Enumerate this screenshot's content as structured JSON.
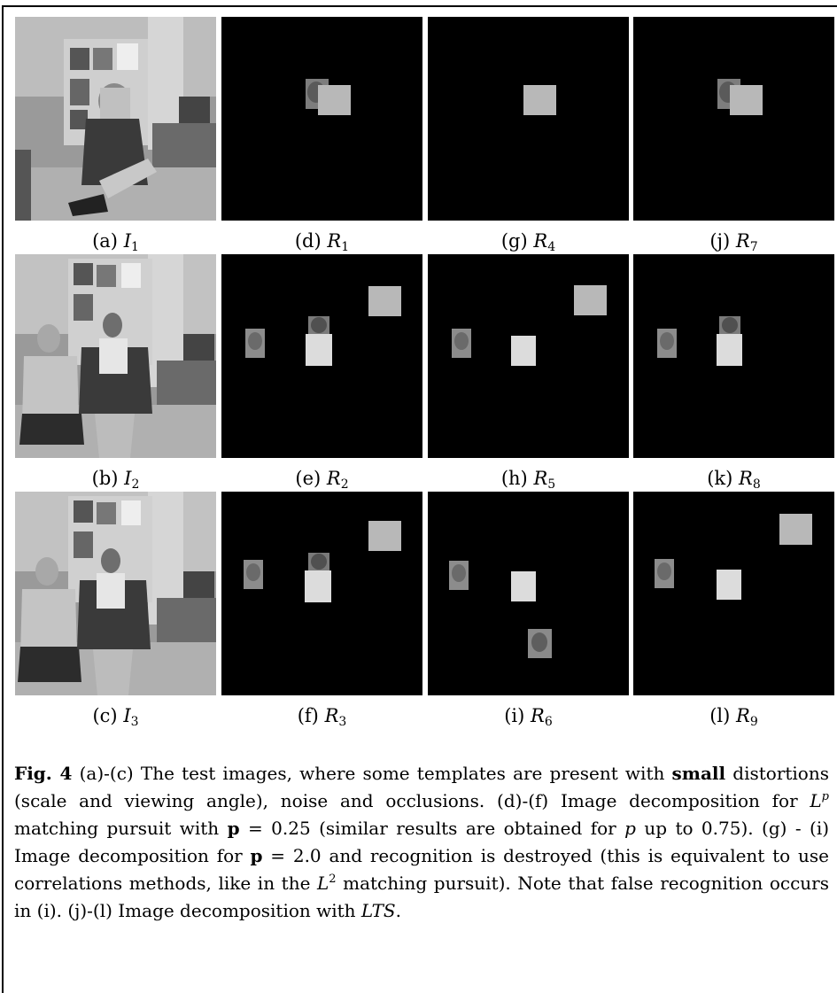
{
  "panels": [
    {
      "id": "a",
      "label": "(a)",
      "sym": "I",
      "sub": "1"
    },
    {
      "id": "d",
      "label": "(d)",
      "sym": "R",
      "sub": "1"
    },
    {
      "id": "g",
      "label": "(g)",
      "sym": "R",
      "sub": "4"
    },
    {
      "id": "j",
      "label": "(j)",
      "sym": "R",
      "sub": "7"
    },
    {
      "id": "b",
      "label": "(b)",
      "sym": "I",
      "sub": "2"
    },
    {
      "id": "e",
      "label": "(e)",
      "sym": "R",
      "sub": "2"
    },
    {
      "id": "h",
      "label": "(h)",
      "sym": "R",
      "sub": "5"
    },
    {
      "id": "k",
      "label": "(k)",
      "sym": "R",
      "sub": "8"
    },
    {
      "id": "c",
      "label": "(c)",
      "sym": "I",
      "sub": "3"
    },
    {
      "id": "f",
      "label": "(f)",
      "sym": "R",
      "sub": "3"
    },
    {
      "id": "i",
      "label": "(i)",
      "sym": "R",
      "sub": "6"
    },
    {
      "id": "l",
      "label": "(l)",
      "sym": "R",
      "sub": "9"
    }
  ],
  "caption": {
    "fig_label": "Fig. 4",
    "t1": " (a)-(c) The test images, where some templates are present with ",
    "small": "small",
    "t2": " distortions (scale and viewing angle), noise and occlusions. (d)-(f) Image decomposition for ",
    "lp_base": "L",
    "lp_exp": "p",
    "t3": " matching pursuit with ",
    "p_bold1": "p",
    "t4": " = 0.25 (similar results are obtained for ",
    "p_ital": "p",
    "t5": " up to 0.75). (g) - (i) Image decomposition for ",
    "p_bold2": "p",
    "t6": " = 2.0 and recognition is destroyed (this is equivalent to use correlations methods, like in the ",
    "l2_base": "L",
    "l2_exp": "2",
    "t7": " matching pursuit). Note that false recognition occurs in (i). (j)-(l) Image decomposition with ",
    "lts": "LTS",
    "t8": "."
  }
}
